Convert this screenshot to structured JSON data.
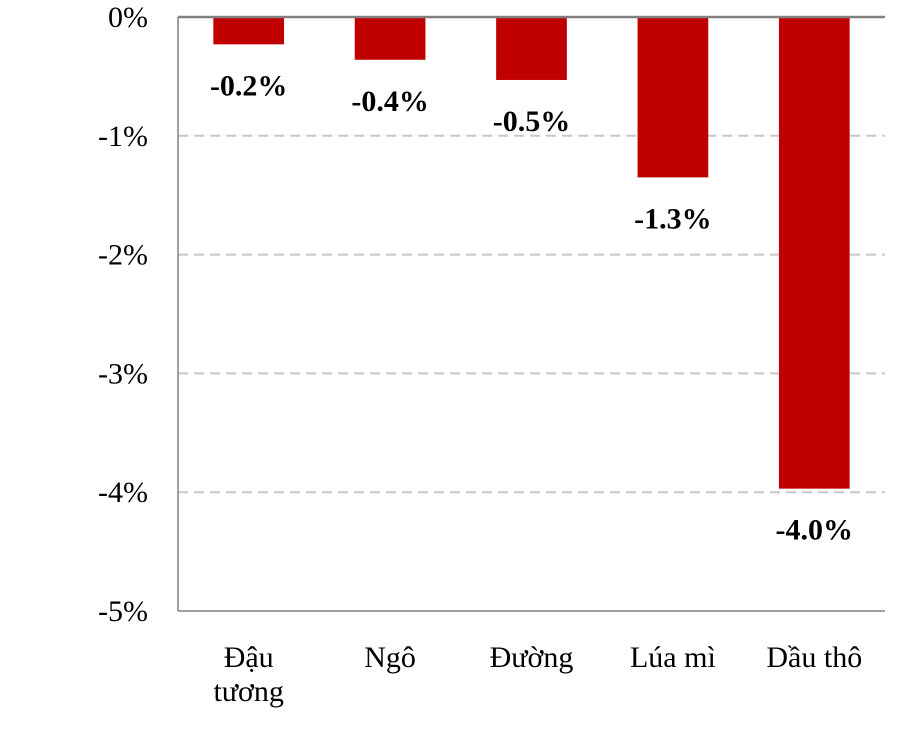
{
  "chart_data": {
    "type": "bar",
    "categories": [
      [
        "Đậu",
        "tương"
      ],
      [
        "Ngô"
      ],
      [
        "Đường"
      ],
      [
        "Lúa mì"
      ],
      [
        "Dầu thô"
      ]
    ],
    "values": [
      -0.23,
      -0.36,
      -0.53,
      -1.35,
      -3.97
    ],
    "data_labels": [
      "-0.2%",
      "-0.4%",
      "-0.5%",
      "-1.3%",
      "-4.0%"
    ],
    "yticks": [
      0,
      -1,
      -2,
      -3,
      -4,
      -5
    ],
    "ytick_labels": [
      "0%",
      "-1%",
      "-2%",
      "-3%",
      "-4%",
      "-5%"
    ],
    "ylim": [
      -5,
      0
    ],
    "grid": true,
    "legend": "none",
    "colors": {
      "bar": "#c00000",
      "grid": "#c8c8c8",
      "axis": "#808080"
    }
  }
}
